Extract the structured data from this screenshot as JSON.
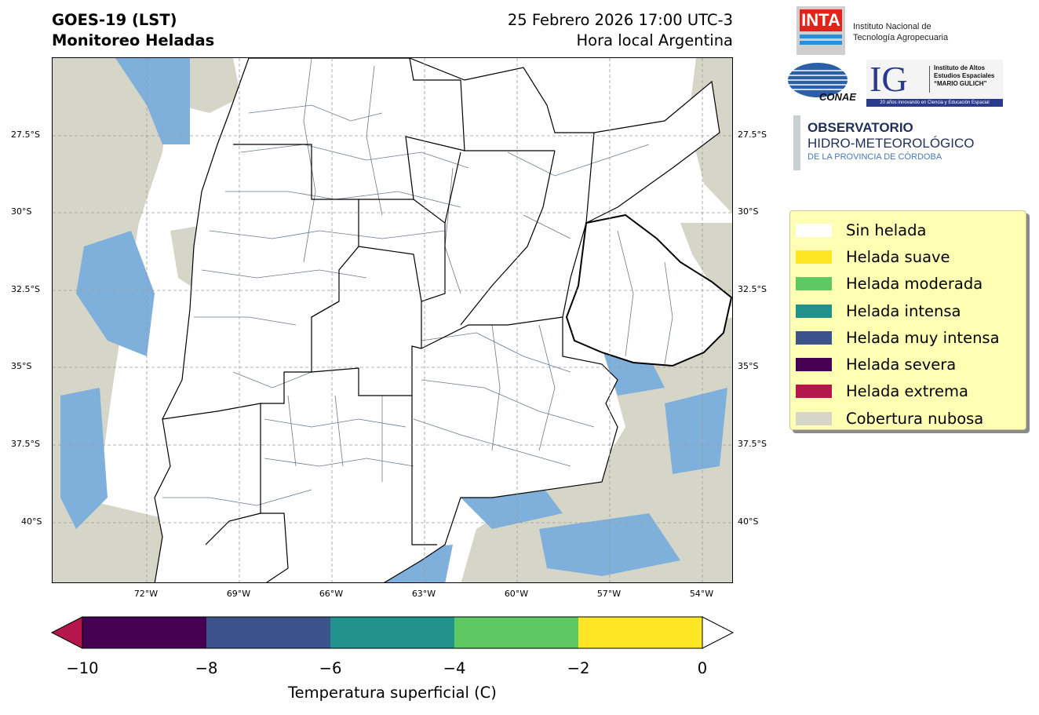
{
  "header": {
    "title_line1": "GOES-19 (LST)",
    "title_line2": "Monitoreo Heladas",
    "date_line": "25 Febrero 2026 17:00 UTC-3",
    "time_zone_line": "Hora local Argentina"
  },
  "logos": {
    "inta_mark": "INTA",
    "inta_line1": "Instituto Nacional de",
    "inta_line2": "Tecnología Agropecuaria",
    "conae_mark": "CONAE",
    "ig_mark": "IG",
    "ig_line1": "Instituto de Altos",
    "ig_line2": "Estudios Espaciales",
    "ig_line3": "“MARIO GULICH”",
    "ig_tagline": "20 años innovando en Ciencia y Educación Espacial",
    "obs_line1": "OBSERVATORIO",
    "obs_line2": "HIDRO-METEOROLÓGICO",
    "obs_line3": "DE LA PROVINCIA DE CÓRDOBA"
  },
  "map": {
    "lat_ticks": [
      "27.5°S",
      "30°S",
      "32.5°S",
      "35°S",
      "37.5°S",
      "40°S"
    ],
    "lon_ticks": [
      "72°W",
      "69°W",
      "66°W",
      "63°W",
      "60°W",
      "57°W",
      "54°W"
    ],
    "colors": {
      "cloud": "#d6d6c8",
      "water_cold": "#7fb0dc",
      "land": "#ffffff",
      "border": "#000000",
      "dept_border": "#6a7a8c"
    }
  },
  "legend": {
    "items": [
      {
        "label": "Sin helada",
        "color": "#ffffff"
      },
      {
        "label": "Helada suave",
        "color": "#fde725"
      },
      {
        "label": "Helada moderada",
        "color": "#5ec962"
      },
      {
        "label": "Helada intensa",
        "color": "#21918c"
      },
      {
        "label": "Helada muy intensa",
        "color": "#3b528b"
      },
      {
        "label": "Helada severa",
        "color": "#440154"
      },
      {
        "label": "Helada extrema",
        "color": "#b5164b"
      },
      {
        "label": "Cobertura nubosa",
        "color": "#d6d6c8"
      }
    ]
  },
  "colorbar": {
    "title": "Temperatura superficial (C)",
    "ticks": [
      "−10",
      "−8",
      "−6",
      "−4",
      "−2",
      "0"
    ],
    "segments": [
      "#440154",
      "#3b528b",
      "#21918c",
      "#5ec962",
      "#fde725"
    ],
    "under_color": "#b5164b",
    "over_color": "#ffffff"
  }
}
